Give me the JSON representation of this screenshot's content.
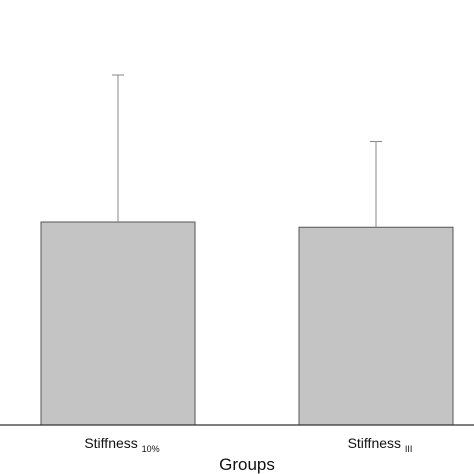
{
  "chart_data": {
    "type": "bar",
    "categories": [
      {
        "label": "Stiffness",
        "subscript": "10%"
      },
      {
        "label": "Stiffness",
        "subscript": "III"
      }
    ],
    "values": [
      58,
      56.5
    ],
    "error_upper": [
      100,
      81
    ],
    "xlabel": "Groups",
    "ylim": [
      0,
      100
    ],
    "grid": false,
    "colors": {
      "bar_fill": "#c4c4c4",
      "bar_stroke": "#555555",
      "error_bar": "#888888"
    }
  }
}
